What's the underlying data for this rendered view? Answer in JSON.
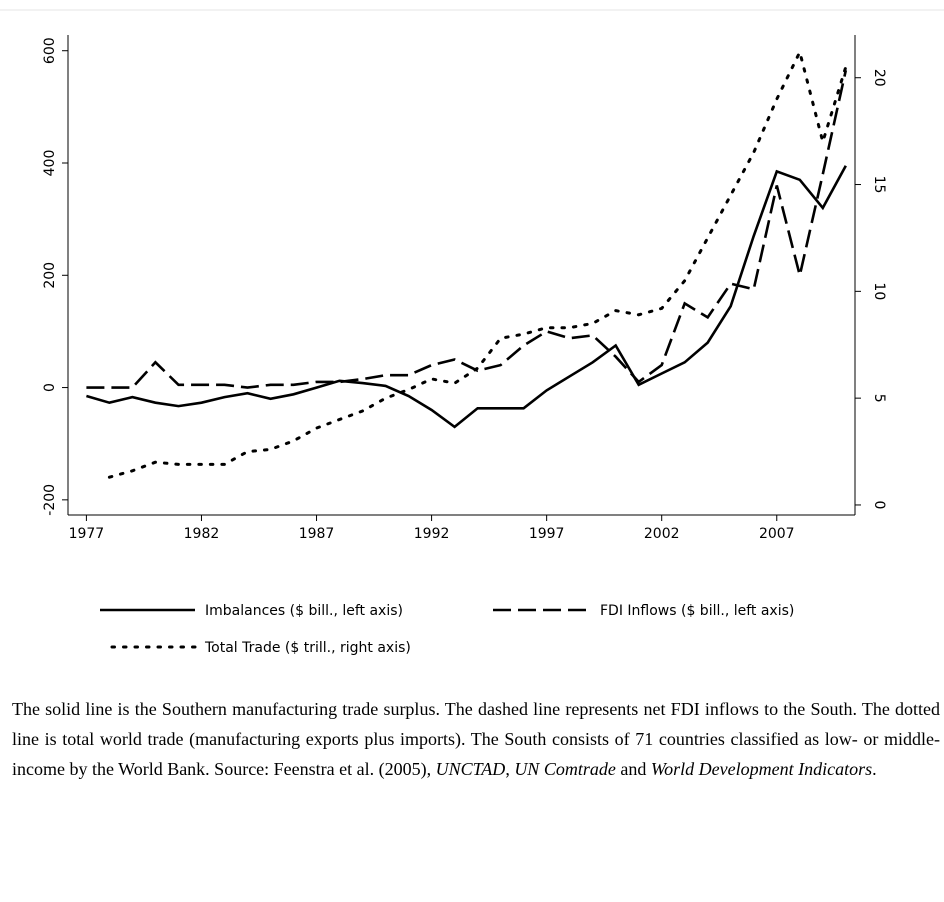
{
  "chart_data": {
    "type": "line",
    "x": [
      1977,
      1978,
      1979,
      1980,
      1981,
      1982,
      1983,
      1984,
      1985,
      1986,
      1987,
      1988,
      1989,
      1990,
      1991,
      1992,
      1993,
      1994,
      1995,
      1996,
      1997,
      1998,
      1999,
      2000,
      2001,
      2002,
      2003,
      2004,
      2005,
      2006,
      2007,
      2008,
      2009,
      2010
    ],
    "xlim": [
      1976.2,
      2010.4
    ],
    "xticks": [
      1977,
      1982,
      1987,
      1992,
      1997,
      2002,
      2007
    ],
    "ylim": [
      -227,
      628
    ],
    "yticks": [
      -200,
      0,
      200,
      400,
      600
    ],
    "y2lim": [
      -0.47,
      22.0
    ],
    "y2ticks": [
      0,
      5,
      10,
      15,
      20
    ],
    "series": [
      {
        "name": "Imbalances ($ bill., left axis)",
        "color": "#000000",
        "dash": "solid",
        "values": [
          -15,
          -27,
          -17,
          -27,
          -33,
          -27,
          -17,
          -10,
          -20,
          -12,
          0,
          12,
          8,
          3,
          -15,
          -40,
          -70,
          -37,
          -37,
          -37,
          -5,
          20,
          45,
          75,
          5,
          25,
          45,
          80,
          145,
          270,
          385,
          370,
          320,
          395
        ]
      },
      {
        "name": "FDI Inflows ($ bill., left axis)",
        "color": "#000000",
        "dash": "dashed",
        "values": [
          0,
          0,
          0,
          45,
          5,
          5,
          5,
          0,
          5,
          5,
          10,
          10,
          15,
          22,
          22,
          40,
          50,
          30,
          40,
          75,
          100,
          88,
          93,
          55,
          10,
          40,
          150,
          125,
          185,
          175,
          360,
          200,
          380,
          565
        ]
      },
      {
        "name": "Total Trade ($ trill., right axis)",
        "color": "#000000",
        "dash": "dotted",
        "axis": "y2",
        "values": [
          null,
          1.3,
          1.6,
          2.0,
          1.9,
          1.9,
          1.9,
          2.5,
          2.6,
          3.0,
          3.6,
          4.0,
          4.4,
          5.0,
          5.4,
          5.9,
          5.7,
          6.4,
          7.8,
          8.0,
          8.3,
          8.3,
          8.5,
          9.1,
          8.9,
          9.2,
          10.5,
          12.5,
          14.5,
          16.5,
          19.0,
          21.2,
          17.0,
          20.5
        ]
      }
    ]
  },
  "caption": [
    {
      "text": "The solid line is the Southern manufacturing trade surplus. The dashed line represents net FDI inflows to the South. The dotted line is total world trade (manufacturing exports plus imports). The South consists of 71 countries classified as low- or middle-income by the World Bank. Source: Feenstra et al. (2005), ",
      "italic": false
    },
    {
      "text": "UNCTAD",
      "italic": true
    },
    {
      "text": ", ",
      "italic": false
    },
    {
      "text": "UN Comtrade",
      "italic": true
    },
    {
      "text": " and ",
      "italic": false
    },
    {
      "text": "World Development Indicators",
      "italic": true
    },
    {
      "text": ".",
      "italic": false
    }
  ]
}
